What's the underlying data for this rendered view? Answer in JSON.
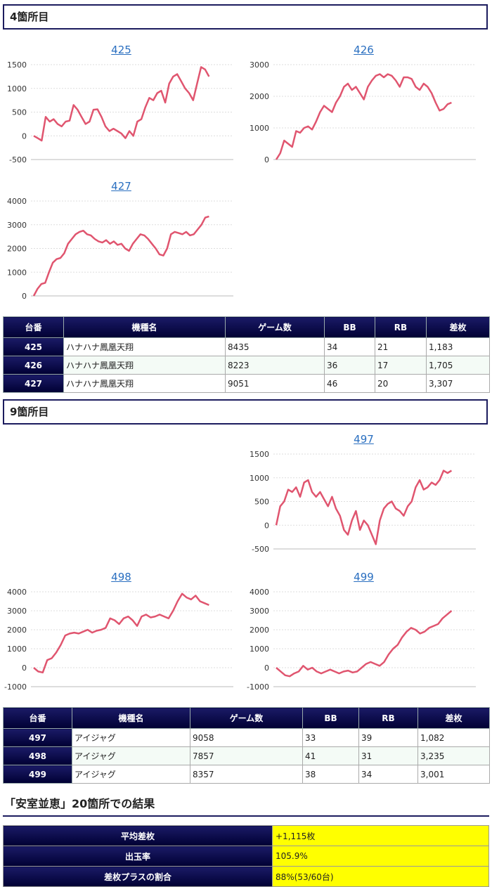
{
  "sections": [
    {
      "title": "4箇所目"
    },
    {
      "title": "9箇所目"
    }
  ],
  "colors": {
    "line": "#e0556f",
    "header_bg": "#0a0a4a",
    "highlight": "#ffff00",
    "link": "#2a6fc0"
  },
  "chart_data": [
    {
      "type": "line",
      "title": "425",
      "ylim": [
        -500,
        1500
      ],
      "yticks": [
        -500,
        0,
        500,
        1000,
        1500
      ],
      "xlabel": "",
      "ylabel": "",
      "values": [
        0,
        -50,
        -100,
        400,
        300,
        350,
        250,
        200,
        300,
        320,
        650,
        550,
        400,
        250,
        300,
        550,
        560,
        400,
        200,
        100,
        150,
        100,
        50,
        -50,
        100,
        0,
        300,
        350,
        600,
        800,
        750,
        900,
        950,
        700,
        1100,
        1250,
        1300,
        1150,
        1000,
        900,
        750,
        1100,
        1450,
        1400,
        1250
      ]
    },
    {
      "type": "line",
      "title": "426",
      "ylim": [
        0,
        3000
      ],
      "yticks": [
        0,
        1000,
        2000,
        3000
      ],
      "xlabel": "",
      "ylabel": "",
      "values": [
        0,
        200,
        600,
        500,
        400,
        900,
        850,
        1000,
        1050,
        950,
        1200,
        1500,
        1700,
        1600,
        1500,
        1800,
        2000,
        2300,
        2400,
        2200,
        2300,
        2100,
        1900,
        2300,
        2500,
        2650,
        2700,
        2600,
        2700,
        2650,
        2500,
        2300,
        2600,
        2600,
        2550,
        2300,
        2200,
        2400,
        2300,
        2100,
        1800,
        1550,
        1600,
        1750,
        1800
      ]
    },
    {
      "type": "line",
      "title": "427",
      "ylim": [
        0,
        4000
      ],
      "yticks": [
        0,
        1000,
        2000,
        3000,
        4000
      ],
      "xlabel": "",
      "ylabel": "",
      "values": [
        0,
        300,
        500,
        550,
        1000,
        1400,
        1550,
        1600,
        1800,
        2200,
        2400,
        2600,
        2700,
        2750,
        2600,
        2550,
        2400,
        2300,
        2250,
        2350,
        2200,
        2300,
        2150,
        2200,
        2000,
        1900,
        2200,
        2400,
        2600,
        2550,
        2400,
        2200,
        2000,
        1750,
        1700,
        2000,
        2600,
        2700,
        2650,
        2600,
        2700,
        2550,
        2600,
        2800,
        3000,
        3300,
        3350
      ]
    },
    {
      "type": "line",
      "title": "497",
      "ylim": [
        -500,
        1500
      ],
      "yticks": [
        -500,
        0,
        500,
        1000,
        1500
      ],
      "xlabel": "",
      "ylabel": "",
      "values": [
        0,
        400,
        500,
        750,
        700,
        800,
        600,
        900,
        950,
        700,
        600,
        700,
        550,
        400,
        600,
        350,
        200,
        -100,
        -200,
        100,
        300,
        -100,
        100,
        0,
        -200,
        -400,
        100,
        350,
        450,
        500,
        350,
        300,
        200,
        400,
        500,
        800,
        950,
        750,
        800,
        900,
        850,
        950,
        1150,
        1100,
        1150
      ]
    },
    {
      "type": "line",
      "title": "498",
      "ylim": [
        -1000,
        4000
      ],
      "yticks": [
        -1000,
        0,
        1000,
        2000,
        3000,
        4000
      ],
      "xlabel": "",
      "ylabel": "",
      "values": [
        0,
        -200,
        -250,
        400,
        500,
        800,
        1200,
        1700,
        1800,
        1850,
        1800,
        1900,
        2000,
        1850,
        1950,
        2000,
        2100,
        2600,
        2500,
        2300,
        2600,
        2700,
        2500,
        2200,
        2700,
        2800,
        2650,
        2700,
        2800,
        2700,
        2600,
        3000,
        3500,
        3900,
        3700,
        3600,
        3800,
        3500,
        3400,
        3300
      ]
    },
    {
      "type": "line",
      "title": "499",
      "ylim": [
        -1000,
        4000
      ],
      "yticks": [
        -1000,
        0,
        1000,
        2000,
        3000,
        4000
      ],
      "xlabel": "",
      "ylabel": "",
      "values": [
        0,
        -200,
        -400,
        -450,
        -300,
        -200,
        100,
        -100,
        0,
        -200,
        -300,
        -200,
        -100,
        -200,
        -300,
        -200,
        -150,
        -250,
        -200,
        0,
        200,
        300,
        200,
        100,
        300,
        700,
        1000,
        1200,
        1600,
        1900,
        2100,
        2000,
        1800,
        1900,
        2100,
        2200,
        2300,
        2600,
        2800,
        3000
      ]
    }
  ],
  "table1": {
    "headers": [
      "台番",
      "機種名",
      "ゲーム数",
      "BB",
      "RB",
      "差枚"
    ],
    "rows": [
      [
        "425",
        "ハナハナ鳳凰天翔",
        "8435",
        "34",
        "21",
        "1,183"
      ],
      [
        "426",
        "ハナハナ鳳凰天翔",
        "8223",
        "36",
        "17",
        "1,705"
      ],
      [
        "427",
        "ハナハナ鳳凰天翔",
        "9051",
        "46",
        "20",
        "3,307"
      ]
    ]
  },
  "table2": {
    "headers": [
      "台番",
      "機種名",
      "ゲーム数",
      "BB",
      "RB",
      "差枚"
    ],
    "rows": [
      [
        "497",
        "アイジャグ",
        "9058",
        "33",
        "39",
        "1,082"
      ],
      [
        "498",
        "アイジャグ",
        "7857",
        "41",
        "31",
        "3,235"
      ],
      [
        "499",
        "アイジャグ",
        "8357",
        "38",
        "34",
        "3,001"
      ]
    ]
  },
  "summary": {
    "title": "「安室並恵」20箇所での結果",
    "rows": [
      {
        "label": "平均差枚",
        "value": "+1,115枚"
      },
      {
        "label": "出玉率",
        "value": "105.9%"
      },
      {
        "label": "差枚プラスの割合",
        "value": "88%(53/60台)"
      }
    ]
  }
}
